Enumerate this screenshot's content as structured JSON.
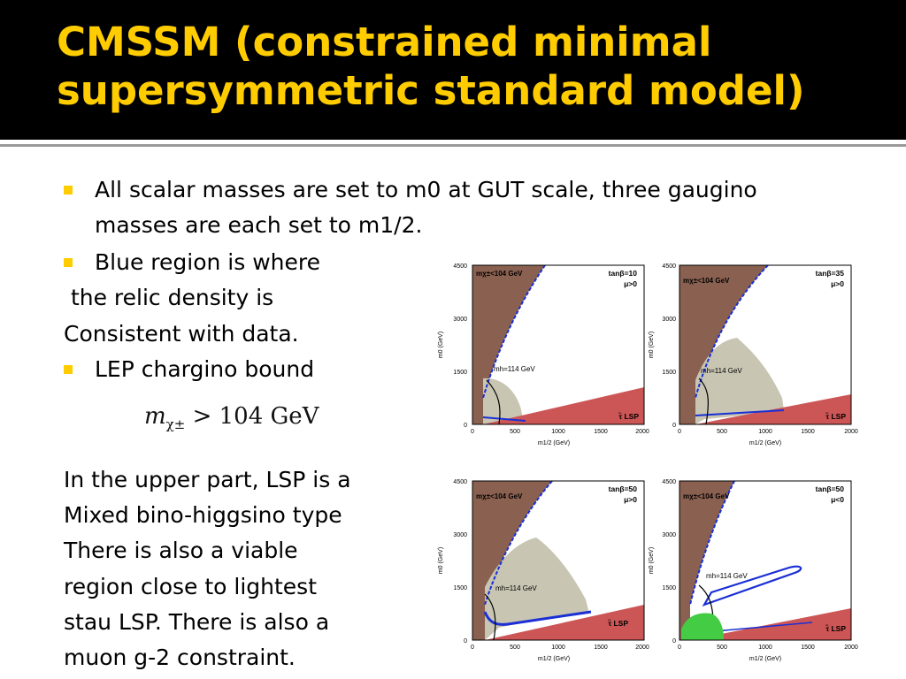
{
  "title": "CMSSM (constrained minimal supersymmetric standard model)",
  "bullets": [
    "All scalar masses are set to m0 at GUT scale, three gaugino",
    "masses are each set to m1/2.",
    "Blue region is where",
    " the relic density is",
    "Consistent with data.",
    "LEP chargino bound"
  ],
  "formula": {
    "lhs": "m",
    "sub": "χ±",
    "rel": "> 104 GeV"
  },
  "paragraph": [
    "In the upper part, LSP is a",
    "Mixed bino-higgsino type",
    "There is also a viable",
    "region close to lightest",
    "stau LSP. There is also a",
    "muon g-2 constraint."
  ],
  "colors": {
    "title": "#ffcc00",
    "bullet": "#ffcc00",
    "brown": "#8a6050",
    "tan": "#c8c5b2",
    "red": "#cc5555",
    "blue": "#1a2fd6",
    "green": "#44cc44"
  },
  "plots": [
    {
      "tanb": "tanβ=10",
      "mu": "μ>0",
      "chargino": "mχ±<104 GeV",
      "higgs": "mh=114 GeV",
      "lsp": "τ̃ LSP",
      "ylabel": "m0 (GeV)",
      "xlabel": "m1/2 (GeV)",
      "yticks": [
        "4500",
        "3000",
        "1500",
        "0"
      ],
      "xticks": [
        "0",
        "500",
        "1000",
        "1500",
        "2000"
      ]
    },
    {
      "tanb": "tanβ=35",
      "mu": "μ>0",
      "chargino": "mχ±<104 GeV",
      "higgs": "mh=114 GeV",
      "lsp": "τ̃ LSP",
      "ylabel": "m0 (GeV)",
      "xlabel": "m1/2 (GeV)",
      "yticks": [
        "4500",
        "3000",
        "1500",
        "0"
      ],
      "xticks": [
        "0",
        "500",
        "1000",
        "1500",
        "2000"
      ]
    },
    {
      "tanb": "tanβ=50",
      "mu": "μ>0",
      "chargino": "mχ±<104 GeV",
      "higgs": "mh=114 GeV",
      "lsp": "τ̃ LSP",
      "ylabel": "m0 (GeV)",
      "xlabel": "m1/2 (GeV)",
      "yticks": [
        "4500",
        "3000",
        "1500",
        "0"
      ],
      "xticks": [
        "0",
        "500",
        "1000",
        "1500",
        "2000"
      ]
    },
    {
      "tanb": "tanβ=50",
      "mu": "μ<0",
      "chargino": "mχ±<104 GeV",
      "higgs": "mh=114 GeV",
      "lsp": "τ̃ LSP",
      "ylabel": "m0 (GeV)",
      "xlabel": "m1/2 (GeV)",
      "yticks": [
        "4500",
        "3000",
        "1500",
        "0"
      ],
      "xticks": [
        "0",
        "500",
        "1000",
        "1500",
        "2000"
      ]
    }
  ]
}
